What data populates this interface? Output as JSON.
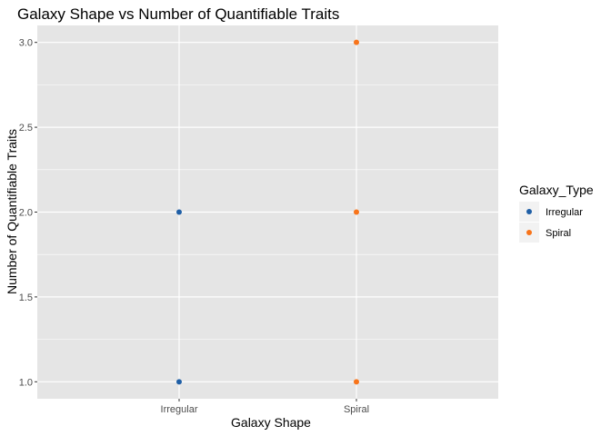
{
  "chart_data": {
    "type": "scatter",
    "title": "Galaxy Shape vs Number of Quantifiable Traits",
    "xlabel": "Galaxy Shape",
    "ylabel": "Number of Quantifiable Traits",
    "categories": [
      "Irregular",
      "Spiral"
    ],
    "ylim": [
      0.9,
      3.1
    ],
    "yticks": [
      "1.0",
      "1.5",
      "2.0",
      "2.5",
      "3.0"
    ],
    "grid": true,
    "legend": {
      "title": "Galaxy_Type",
      "placement": "right",
      "entries": [
        {
          "name": "Irregular",
          "color": "#1f5fa6"
        },
        {
          "name": "Spiral",
          "color": "#f8741a"
        }
      ]
    },
    "series": [
      {
        "name": "Irregular",
        "color": "#1f5fa6",
        "points": [
          {
            "x": "Irregular",
            "y": 2.0
          },
          {
            "x": "Irregular",
            "y": 1.0
          }
        ]
      },
      {
        "name": "Spiral",
        "color": "#f8741a",
        "points": [
          {
            "x": "Spiral",
            "y": 3.0
          },
          {
            "x": "Spiral",
            "y": 2.0
          },
          {
            "x": "Spiral",
            "y": 1.0
          }
        ]
      }
    ],
    "panel_color": "#e5e5e5",
    "grid_color": "#ffffff"
  }
}
